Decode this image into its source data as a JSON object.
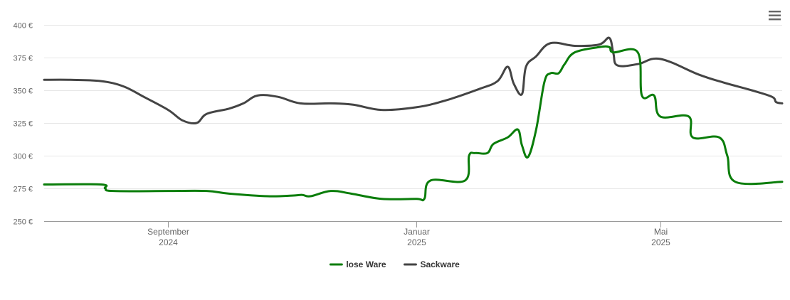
{
  "menu": {
    "icon": "hamburger-menu-icon"
  },
  "chart_data": {
    "type": "line",
    "title": "",
    "xlabel": "",
    "ylabel": "",
    "ylim": [
      250,
      400
    ],
    "y_ticks": [
      {
        "value": 400,
        "label": "400 €"
      },
      {
        "value": 375,
        "label": "375 €"
      },
      {
        "value": 350,
        "label": "350 €"
      },
      {
        "value": 325,
        "label": "325 €"
      },
      {
        "value": 300,
        "label": "300 €"
      },
      {
        "value": 275,
        "label": "275 €"
      },
      {
        "value": 250,
        "label": "250 €"
      }
    ],
    "x_range": [
      "2024-07-02",
      "2025-06-30"
    ],
    "x_ticks": [
      {
        "date": "2024-09-01",
        "month": "September",
        "year": "2024"
      },
      {
        "date": "2025-01-01",
        "month": "Januar",
        "year": "2025"
      },
      {
        "date": "2025-05-01",
        "month": "Mai",
        "year": "2025"
      }
    ],
    "grid": true,
    "legend_position": "bottom-center",
    "series": [
      {
        "name": "lose Ware",
        "color": "#0a7d0a",
        "points": [
          [
            "2024-07-02",
            278
          ],
          [
            "2024-07-30",
            278
          ],
          [
            "2024-08-01",
            275
          ],
          [
            "2024-08-05",
            273
          ],
          [
            "2024-09-01",
            273
          ],
          [
            "2024-09-20",
            273
          ],
          [
            "2024-10-01",
            271
          ],
          [
            "2024-10-20",
            269
          ],
          [
            "2024-11-01",
            269.5
          ],
          [
            "2024-11-06",
            270
          ],
          [
            "2024-11-10",
            269
          ],
          [
            "2024-11-20",
            273
          ],
          [
            "2024-11-30",
            271
          ],
          [
            "2024-12-15",
            267
          ],
          [
            "2025-01-01",
            267
          ],
          [
            "2025-01-05",
            267
          ],
          [
            "2025-01-08",
            281
          ],
          [
            "2025-01-25",
            281
          ],
          [
            "2025-01-27",
            300
          ],
          [
            "2025-01-30",
            302
          ],
          [
            "2025-02-05",
            302
          ],
          [
            "2025-02-08",
            309
          ],
          [
            "2025-02-15",
            314
          ],
          [
            "2025-02-20",
            320
          ],
          [
            "2025-02-22",
            308
          ],
          [
            "2025-02-25",
            299
          ],
          [
            "2025-03-01",
            320
          ],
          [
            "2025-03-05",
            356
          ],
          [
            "2025-03-08",
            363
          ],
          [
            "2025-03-12",
            363
          ],
          [
            "2025-03-15",
            370
          ],
          [
            "2025-03-20",
            379
          ],
          [
            "2025-04-01",
            383
          ],
          [
            "2025-04-06",
            383
          ],
          [
            "2025-04-08",
            379
          ],
          [
            "2025-04-20",
            379
          ],
          [
            "2025-04-22",
            346
          ],
          [
            "2025-04-28",
            346
          ],
          [
            "2025-05-01",
            330
          ],
          [
            "2025-05-15",
            330
          ],
          [
            "2025-05-17",
            314
          ],
          [
            "2025-05-30",
            314
          ],
          [
            "2025-06-03",
            300
          ],
          [
            "2025-06-07",
            280
          ],
          [
            "2025-06-30",
            280
          ]
        ]
      },
      {
        "name": "Sackware",
        "color": "#444444",
        "points": [
          [
            "2024-07-02",
            358
          ],
          [
            "2024-07-15",
            358
          ],
          [
            "2024-07-30",
            357
          ],
          [
            "2024-08-10",
            353
          ],
          [
            "2024-08-20",
            345
          ],
          [
            "2024-09-01",
            335
          ],
          [
            "2024-09-08",
            327
          ],
          [
            "2024-09-15",
            325
          ],
          [
            "2024-09-20",
            332
          ],
          [
            "2024-10-01",
            336
          ],
          [
            "2024-10-08",
            340
          ],
          [
            "2024-10-15",
            346
          ],
          [
            "2024-10-25",
            345
          ],
          [
            "2024-11-05",
            340
          ],
          [
            "2024-11-20",
            340
          ],
          [
            "2024-12-01",
            339
          ],
          [
            "2024-12-15",
            335
          ],
          [
            "2025-01-01",
            337
          ],
          [
            "2025-01-15",
            342
          ],
          [
            "2025-02-01",
            351
          ],
          [
            "2025-02-10",
            357
          ],
          [
            "2025-02-15",
            368
          ],
          [
            "2025-02-18",
            355
          ],
          [
            "2025-02-22",
            347
          ],
          [
            "2025-02-24",
            368
          ],
          [
            "2025-03-01",
            376
          ],
          [
            "2025-03-08",
            386
          ],
          [
            "2025-03-20",
            384
          ],
          [
            "2025-04-01",
            385
          ],
          [
            "2025-04-06",
            390
          ],
          [
            "2025-04-08",
            378
          ],
          [
            "2025-04-10",
            369
          ],
          [
            "2025-04-20",
            370
          ],
          [
            "2025-05-01",
            374
          ],
          [
            "2025-05-20",
            362
          ],
          [
            "2025-06-01",
            356
          ],
          [
            "2025-06-15",
            350
          ],
          [
            "2025-06-25",
            345
          ],
          [
            "2025-06-27",
            341
          ],
          [
            "2025-06-30",
            340
          ]
        ]
      }
    ]
  }
}
